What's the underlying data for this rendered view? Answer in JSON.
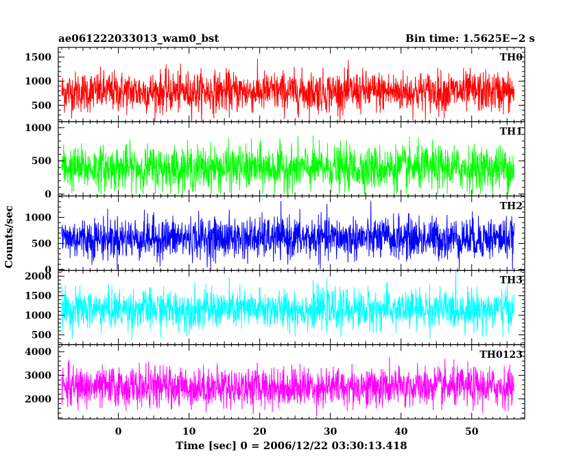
{
  "header": {
    "title": "ae061222033013_wam0_bst",
    "bin_time": "Bin time: 1.5625E−2 s"
  },
  "chart_data": {
    "type": "line",
    "title": "ae061222033013_wam0_bst",
    "xlabel": "Time [sec] 0 = 2006/12/22 03:30:13.418",
    "ylabel": "Counts/sec",
    "xlim": [
      -8.5,
      57.5
    ],
    "data_x_range": [
      -8,
      56
    ],
    "bin_time_s": 0.015625,
    "x_ticks": [
      0,
      10,
      20,
      30,
      40,
      50
    ],
    "grid": false,
    "panels": [
      {
        "name": "TH0",
        "color": "#ff0000",
        "ylim": [
          160,
          1700
        ],
        "y_ticks": [
          500,
          1000,
          1500
        ],
        "mean": 780,
        "sd": 210,
        "min": 160,
        "max": 1700
      },
      {
        "name": "TH1",
        "color": "#00ff00",
        "ylim": [
          -30,
          1090
        ],
        "y_ticks": [
          0,
          500,
          1000
        ],
        "mean": 390,
        "sd": 165,
        "min": 0,
        "max": 1090
      },
      {
        "name": "TH2",
        "color": "#0000ff",
        "ylim": [
          -15,
          1410
        ],
        "y_ticks": [
          0,
          500,
          1000
        ],
        "mean": 600,
        "sd": 200,
        "min": 0,
        "max": 1410
      },
      {
        "name": "TH3",
        "color": "#00ffff",
        "ylim": [
          250,
          2150
        ],
        "y_ticks": [
          500,
          1000,
          1500,
          2000
        ],
        "mean": 1150,
        "sd": 250,
        "min": 260,
        "max": 2150
      },
      {
        "name": "TH0123",
        "color": "#ff00ff",
        "ylim": [
          1150,
          4300
        ],
        "y_ticks": [
          2000,
          3000,
          4000
        ],
        "mean": 2500,
        "sd": 420,
        "min": 1150,
        "max": 4300
      }
    ]
  }
}
